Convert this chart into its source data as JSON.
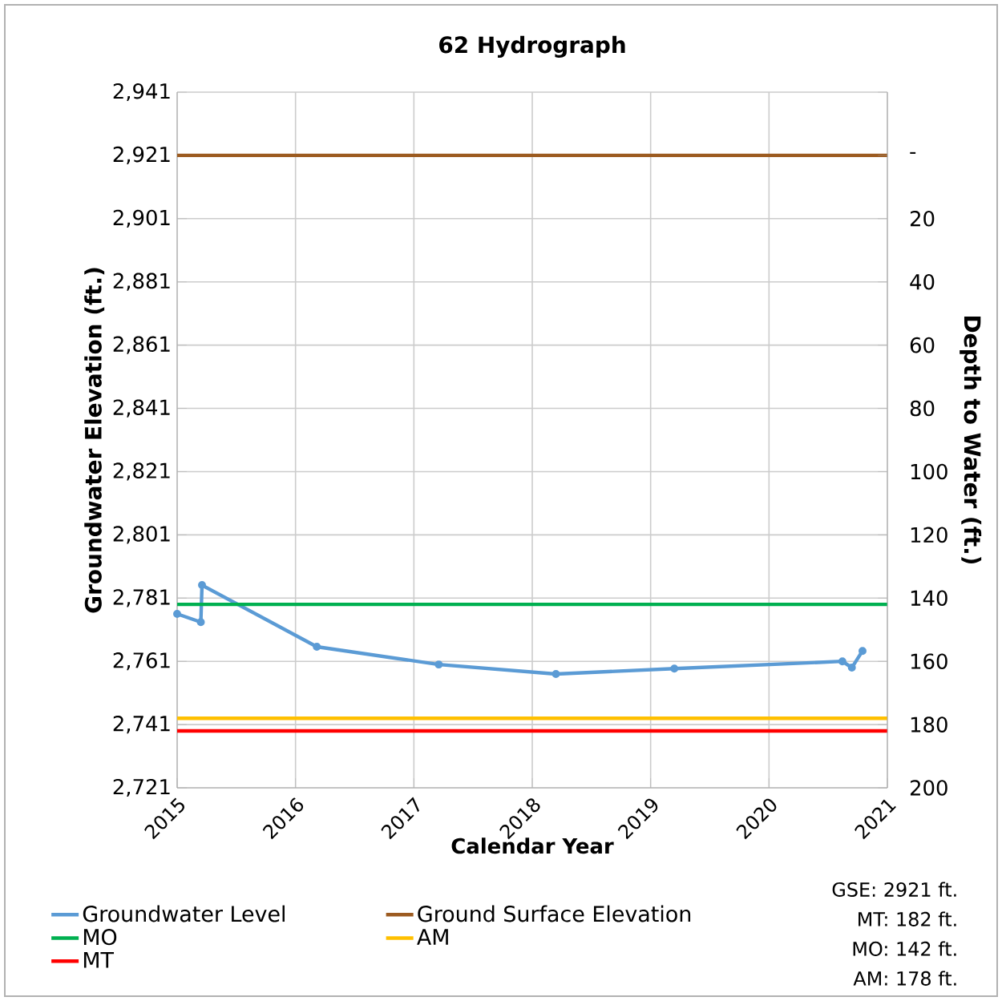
{
  "chart_data": {
    "type": "line",
    "title": "62 Hydrograph",
    "xlabel": "Calendar Year",
    "ylabel": "Groundwater Elevation (ft.)",
    "y2label": "Depth to Water (ft.)",
    "xlim": [
      2015,
      2021
    ],
    "xticks": [
      2015,
      2016,
      2017,
      2018,
      2019,
      2020,
      2021
    ],
    "ylim": [
      2721,
      2941
    ],
    "yticks": [
      {
        "value": 2721,
        "label": "2,721"
      },
      {
        "value": 2741,
        "label": "2,741"
      },
      {
        "value": 2761,
        "label": "2,761"
      },
      {
        "value": 2781,
        "label": "2,781"
      },
      {
        "value": 2801,
        "label": "2,801"
      },
      {
        "value": 2821,
        "label": "2,821"
      },
      {
        "value": 2841,
        "label": "2,841"
      },
      {
        "value": 2861,
        "label": "2,861"
      },
      {
        "value": 2881,
        "label": "2,881"
      },
      {
        "value": 2901,
        "label": "2,901"
      },
      {
        "value": 2921,
        "label": "2,921"
      },
      {
        "value": 2941,
        "label": "2,941"
      }
    ],
    "y2lim": [
      200,
      -20
    ],
    "y2ticks": [
      {
        "value": -20,
        "label": null
      },
      {
        "value": 0,
        "label": "-"
      },
      20,
      40,
      60,
      80,
      100,
      120,
      140,
      160,
      180,
      200
    ],
    "grid": true,
    "legend": "bottom",
    "series": [
      {
        "name": "Groundwater Level",
        "color": "#5b9bd5",
        "marker": "circle",
        "x": [
          2015.0,
          2015.2,
          2015.21,
          2016.18,
          2017.21,
          2018.2,
          2019.2,
          2020.62,
          2020.7,
          2020.79
        ],
        "values": [
          2776.0,
          2773.4,
          2785.1,
          2765.6,
          2760.0,
          2757.0,
          2758.7,
          2761.0,
          2759.0,
          2764.3
        ]
      },
      {
        "name": "Ground Surface Elevation",
        "color": "#9c5b20",
        "marker": "none",
        "x": [
          2015,
          2021
        ],
        "values": [
          2921,
          2921
        ]
      },
      {
        "name": "MO",
        "color": "#00b050",
        "marker": "none",
        "x": [
          2015,
          2021
        ],
        "values": [
          2779,
          2779
        ]
      },
      {
        "name": "AM",
        "color": "#ffc000",
        "marker": "none",
        "x": [
          2015,
          2021
        ],
        "values": [
          2743,
          2743
        ]
      },
      {
        "name": "MT",
        "color": "#ff0000",
        "marker": "none",
        "x": [
          2015,
          2021
        ],
        "values": [
          2739,
          2739
        ]
      }
    ],
    "annotations": [
      "GSE: 2921 ft.",
      "MT: 182 ft.",
      "MO: 142 ft.",
      "AM: 178 ft."
    ]
  }
}
